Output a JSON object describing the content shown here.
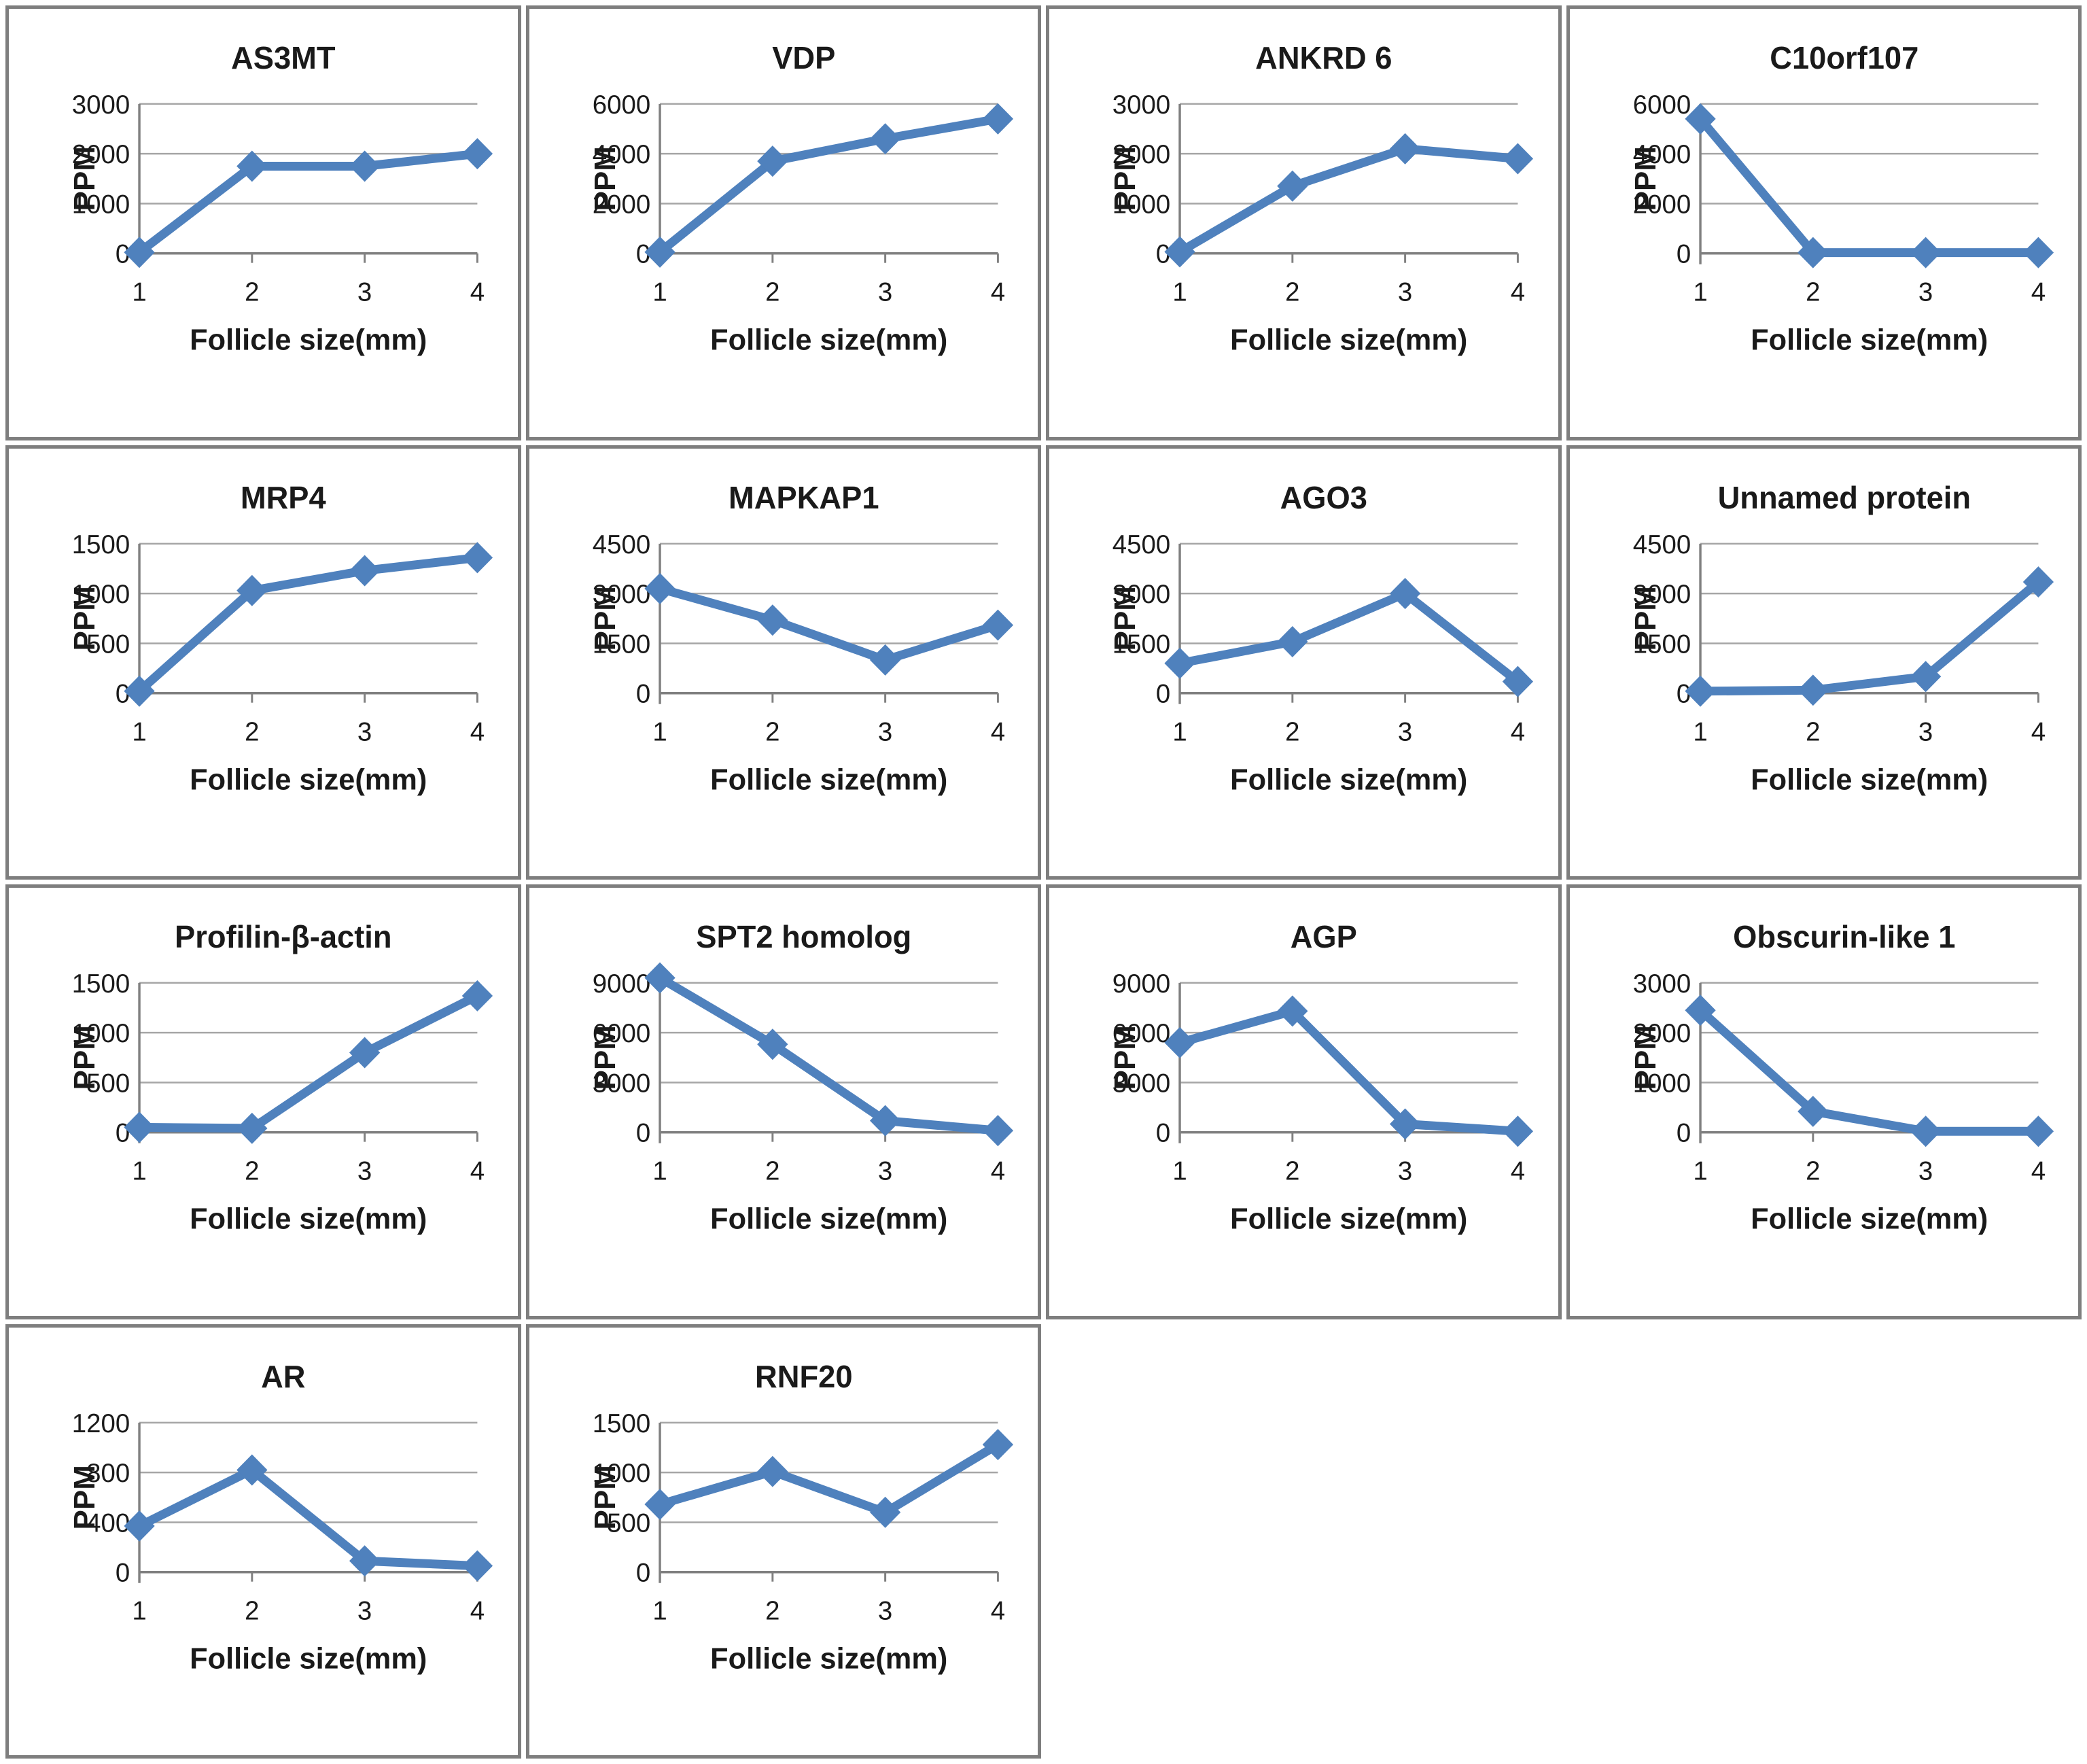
{
  "page": {
    "background": "#ffffff",
    "panel_border_color": "#7e7e7e"
  },
  "style": {
    "accent": "#4f81bd",
    "gridline_color": "#a6a6a6",
    "axis_color": "#808080",
    "text_color": "#1a1a1a"
  },
  "chart_data": [
    {
      "type": "line",
      "title": "AS3MT",
      "xlabel": "Follicle size(mm)",
      "ylabel": "PPM",
      "categories": [
        "1",
        "2",
        "3",
        "4"
      ],
      "values": [
        20,
        1750,
        1750,
        2000
      ],
      "yticks": [
        0,
        1000,
        2000,
        3000
      ],
      "ylim": [
        0,
        3000
      ],
      "grid": true,
      "legend": "none"
    },
    {
      "type": "line",
      "title": "VDP",
      "xlabel": "Follicle size(mm)",
      "ylabel": "PPM",
      "categories": [
        "1",
        "2",
        "3",
        "4"
      ],
      "values": [
        50,
        3700,
        4600,
        5400
      ],
      "yticks": [
        0,
        2000,
        4000,
        6000
      ],
      "ylim": [
        0,
        6000
      ],
      "grid": true,
      "legend": "none"
    },
    {
      "type": "line",
      "title": "ANKRD 6",
      "xlabel": "Follicle size(mm)",
      "ylabel": "PPM",
      "categories": [
        "1",
        "2",
        "3",
        "4"
      ],
      "values": [
        30,
        1350,
        2100,
        1900
      ],
      "yticks": [
        0,
        1000,
        2000,
        3000
      ],
      "ylim": [
        0,
        3000
      ],
      "grid": true,
      "legend": "none"
    },
    {
      "type": "line",
      "title": "C10orf107",
      "xlabel": "Follicle size(mm)",
      "ylabel": "PPM",
      "categories": [
        "1",
        "2",
        "3",
        "4"
      ],
      "values": [
        5400,
        30,
        30,
        30
      ],
      "yticks": [
        0,
        2000,
        4000,
        6000
      ],
      "ylim": [
        0,
        6000
      ],
      "grid": true,
      "legend": "none"
    },
    {
      "type": "line",
      "title": "MRP4",
      "xlabel": "Follicle size(mm)",
      "ylabel": "PPM",
      "categories": [
        "1",
        "2",
        "3",
        "4"
      ],
      "values": [
        20,
        1030,
        1230,
        1360
      ],
      "yticks": [
        0,
        500,
        1000,
        1500
      ],
      "ylim": [
        0,
        1500
      ],
      "grid": true,
      "legend": "none"
    },
    {
      "type": "line",
      "title": "MAPKAP1",
      "xlabel": "Follicle size(mm)",
      "ylabel": "PPM",
      "categories": [
        "1",
        "2",
        "3",
        "4"
      ],
      "values": [
        3150,
        2200,
        1000,
        2050
      ],
      "yticks": [
        0,
        1500,
        3000,
        4500
      ],
      "ylim": [
        0,
        4500
      ],
      "grid": true,
      "legend": "none"
    },
    {
      "type": "line",
      "title": "AGO3",
      "xlabel": "Follicle size(mm)",
      "ylabel": "PPM",
      "categories": [
        "1",
        "2",
        "3",
        "4"
      ],
      "values": [
        900,
        1550,
        3000,
        350
      ],
      "yticks": [
        0,
        1500,
        3000,
        4500
      ],
      "ylim": [
        0,
        4500
      ],
      "grid": true,
      "legend": "none"
    },
    {
      "type": "line",
      "title": "Unnamed protein",
      "xlabel": "Follicle size(mm)",
      "ylabel": "PPM",
      "categories": [
        "1",
        "2",
        "3",
        "4"
      ],
      "values": [
        60,
        90,
        500,
        3350
      ],
      "yticks": [
        0,
        1500,
        3000,
        4500
      ],
      "ylim": [
        0,
        4500
      ],
      "grid": true,
      "legend": "none"
    },
    {
      "type": "line",
      "title": "Profilin-β-actin",
      "xlabel": "Follicle size(mm)",
      "ylabel": "PPM",
      "categories": [
        "1",
        "2",
        "3",
        "4"
      ],
      "values": [
        50,
        40,
        800,
        1370
      ],
      "yticks": [
        0,
        500,
        1000,
        1500
      ],
      "ylim": [
        0,
        1500
      ],
      "grid": true,
      "legend": "none"
    },
    {
      "type": "line",
      "title": "SPT2 homolog",
      "xlabel": "Follicle size(mm)",
      "ylabel": "PPM",
      "categories": [
        "1",
        "2",
        "3",
        "4"
      ],
      "values": [
        9300,
        5300,
        700,
        100
      ],
      "yticks": [
        0,
        3000,
        6000,
        9000
      ],
      "ylim": [
        0,
        9300
      ],
      "grid": true,
      "legend": "none"
    },
    {
      "type": "line",
      "title": "AGP",
      "xlabel": "Follicle size(mm)",
      "ylabel": "PPM",
      "categories": [
        "1",
        "2",
        "3",
        "4"
      ],
      "values": [
        5400,
        7300,
        500,
        60
      ],
      "yticks": [
        0,
        3000,
        6000,
        9000
      ],
      "ylim": [
        0,
        9000
      ],
      "grid": true,
      "legend": "none"
    },
    {
      "type": "line",
      "title": "Obscurin-like 1",
      "xlabel": "Follicle size(mm)",
      "ylabel": "PPM",
      "categories": [
        "1",
        "2",
        "3",
        "4"
      ],
      "values": [
        2450,
        420,
        20,
        20
      ],
      "yticks": [
        0,
        1000,
        2000,
        3000
      ],
      "ylim": [
        0,
        3000
      ],
      "grid": true,
      "legend": "none"
    },
    {
      "type": "line",
      "title": "AR",
      "xlabel": "Follicle size(mm)",
      "ylabel": "PPM",
      "categories": [
        "1",
        "2",
        "3",
        "4"
      ],
      "values": [
        370,
        820,
        90,
        50
      ],
      "yticks": [
        0,
        400,
        800,
        1200
      ],
      "ylim": [
        0,
        1200
      ],
      "grid": true,
      "legend": "none"
    },
    {
      "type": "line",
      "title": "RNF20",
      "xlabel": "Follicle size(mm)",
      "ylabel": "PPM",
      "categories": [
        "1",
        "2",
        "3",
        "4"
      ],
      "values": [
        680,
        1010,
        600,
        1280
      ],
      "yticks": [
        0,
        500,
        1000,
        1500
      ],
      "ylim": [
        0,
        1500
      ],
      "grid": true,
      "legend": "none"
    }
  ]
}
